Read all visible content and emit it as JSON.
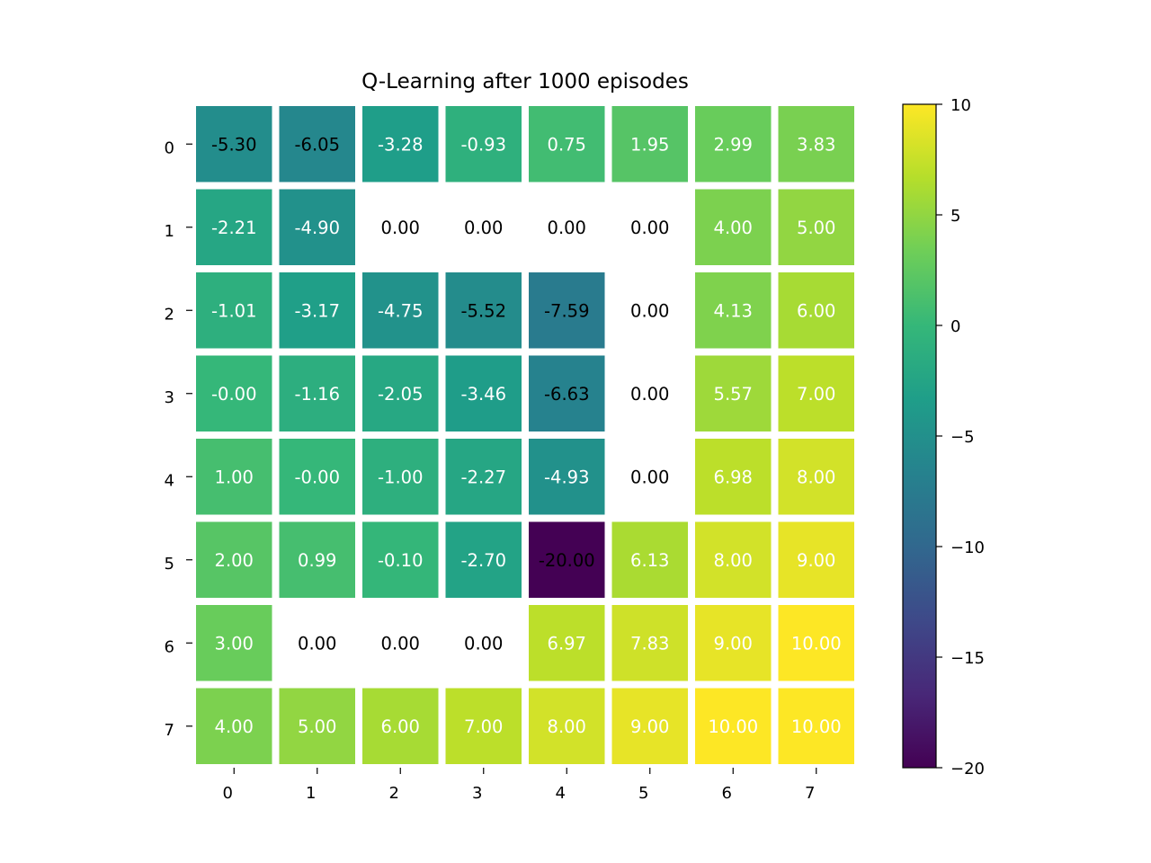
{
  "chart_data": {
    "type": "heatmap",
    "title": "Q-Learning after 1000 episodes",
    "xlabel": "",
    "ylabel": "",
    "x_categories": [
      "0",
      "1",
      "2",
      "3",
      "4",
      "5",
      "6",
      "7"
    ],
    "y_categories": [
      "0",
      "1",
      "2",
      "3",
      "4",
      "5",
      "6",
      "7"
    ],
    "values": [
      [
        -5.3,
        -6.05,
        -3.28,
        -0.93,
        0.75,
        1.95,
        2.99,
        3.83
      ],
      [
        -2.21,
        -4.9,
        0.0,
        0.0,
        0.0,
        0.0,
        4.0,
        5.0
      ],
      [
        -1.01,
        -3.17,
        -4.75,
        -5.52,
        -7.59,
        0.0,
        4.13,
        6.0
      ],
      [
        -0.0,
        -1.16,
        -2.05,
        -3.46,
        -6.63,
        0.0,
        5.57,
        7.0
      ],
      [
        1.0,
        -0.0,
        -1.0,
        -2.27,
        -4.93,
        0.0,
        6.98,
        8.0
      ],
      [
        2.0,
        0.99,
        -0.1,
        -2.7,
        -20.0,
        6.13,
        8.0,
        9.0
      ],
      [
        3.0,
        0.0,
        0.0,
        0.0,
        6.97,
        7.83,
        9.0,
        10.0
      ],
      [
        4.0,
        5.0,
        6.0,
        7.0,
        8.0,
        9.0,
        10.0,
        10.0
      ]
    ],
    "labels": [
      [
        "-5.30",
        "-6.05",
        "-3.28",
        "-0.93",
        "0.75",
        "1.95",
        "2.99",
        "3.83"
      ],
      [
        "-2.21",
        "-4.90",
        "0.00",
        "0.00",
        "0.00",
        "0.00",
        "4.00",
        "5.00"
      ],
      [
        "-1.01",
        "-3.17",
        "-4.75",
        "-5.52",
        "-7.59",
        "0.00",
        "4.13",
        "6.00"
      ],
      [
        "-0.00",
        "-1.16",
        "-2.05",
        "-3.46",
        "-6.63",
        "0.00",
        "5.57",
        "7.00"
      ],
      [
        "1.00",
        "-0.00",
        "-1.00",
        "-2.27",
        "-4.93",
        "0.00",
        "6.98",
        "8.00"
      ],
      [
        "2.00",
        "0.99",
        "-0.10",
        "-2.70",
        "-20.00",
        "6.13",
        "8.00",
        "9.00"
      ],
      [
        "3.00",
        "0.00",
        "0.00",
        "0.00",
        "6.97",
        "7.83",
        "9.00",
        "10.00"
      ],
      [
        "4.00",
        "5.00",
        "6.00",
        "7.00",
        "8.00",
        "9.00",
        "10.00",
        "10.00"
      ]
    ],
    "blank_cells": [
      [
        1,
        2
      ],
      [
        1,
        3
      ],
      [
        1,
        4
      ],
      [
        1,
        5
      ],
      [
        2,
        5
      ],
      [
        3,
        5
      ],
      [
        4,
        5
      ],
      [
        6,
        1
      ],
      [
        6,
        2
      ],
      [
        6,
        3
      ]
    ],
    "colormap": "viridis",
    "vmin": -20,
    "vmax": 10,
    "colorbar_ticks": [
      10,
      5,
      0,
      -5,
      -10,
      -15,
      -20
    ],
    "colorbar_tick_labels": [
      "10",
      "5",
      "0",
      "−5",
      "−10",
      "−15",
      "−20"
    ],
    "cell_text_colors": {
      "dark": "#000000",
      "light": "#ffffff"
    },
    "grid": false,
    "legend": "colorbar-right"
  }
}
